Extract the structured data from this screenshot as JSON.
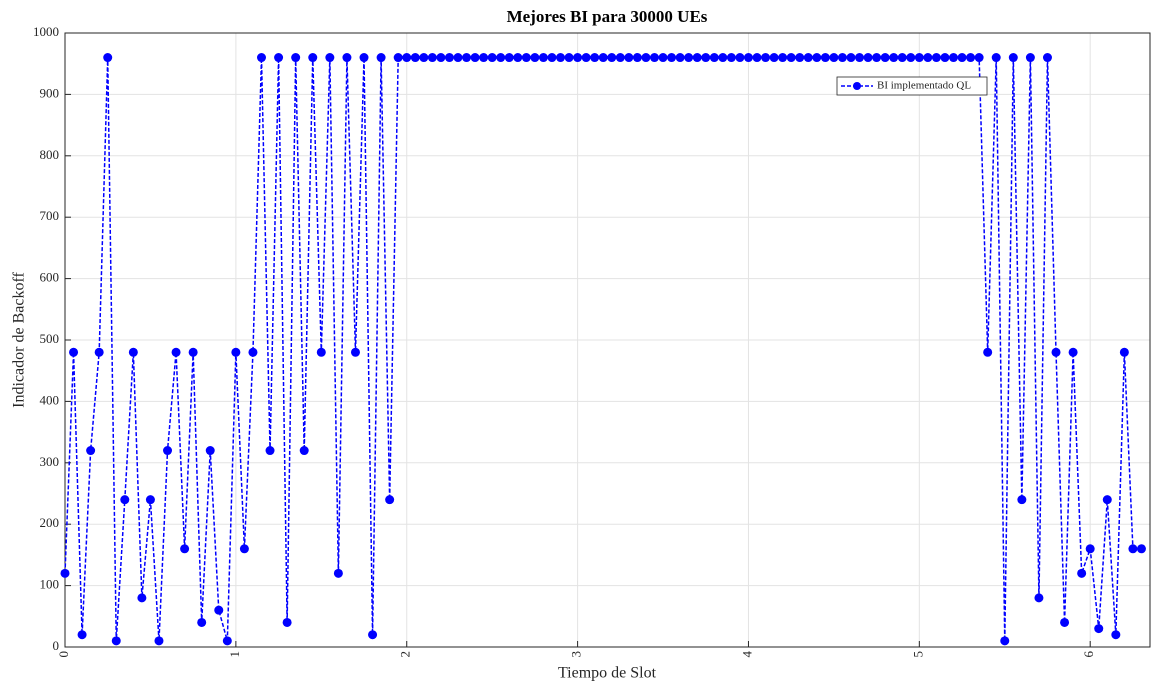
{
  "chart_data": {
    "type": "line",
    "title": "Mejores BI para 30000 UEs",
    "xlabel": "Tiempo de Slot",
    "ylabel": "Indicador de Backoff",
    "x": [
      0,
      0.05,
      0.1,
      0.15,
      0.2,
      0.25,
      0.3,
      0.35,
      0.4,
      0.45,
      0.5,
      0.55,
      0.6,
      0.65,
      0.7,
      0.75,
      0.8,
      0.85,
      0.9,
      0.95,
      1,
      1.05,
      1.1,
      1.15,
      1.2,
      1.25,
      1.3,
      1.35,
      1.4,
      1.45,
      1.5,
      1.55,
      1.6,
      1.65,
      1.7,
      1.75,
      1.8,
      1.85,
      1.9,
      1.95,
      2,
      2.05,
      2.1,
      2.15,
      2.2,
      2.25,
      2.3,
      2.35,
      2.4,
      2.45,
      2.5,
      2.55,
      2.6,
      2.65,
      2.7,
      2.75,
      2.8,
      2.85,
      2.9,
      2.95,
      3,
      3.05,
      3.1,
      3.15,
      3.2,
      3.25,
      3.3,
      3.35,
      3.4,
      3.45,
      3.5,
      3.55,
      3.6,
      3.65,
      3.7,
      3.75,
      3.8,
      3.85,
      3.9,
      3.95,
      4,
      4.05,
      4.1,
      4.15,
      4.2,
      4.25,
      4.3,
      4.35,
      4.4,
      4.45,
      4.5,
      4.55,
      4.6,
      4.65,
      4.7,
      4.75,
      4.8,
      4.85,
      4.9,
      4.95,
      5,
      5.05,
      5.1,
      5.15,
      5.2,
      5.25,
      5.3,
      5.35,
      5.4,
      5.45,
      5.5,
      5.55,
      5.6,
      5.65,
      5.7,
      5.75,
      5.8,
      5.85,
      5.9,
      5.95,
      6,
      6.05,
      6.1,
      6.15,
      6.2,
      6.25,
      6.3
    ],
    "series": [
      {
        "name": "BI implementado QL",
        "color": "#0000ff",
        "values": [
          120,
          480,
          20,
          320,
          480,
          960,
          10,
          240,
          480,
          80,
          240,
          10,
          320,
          480,
          160,
          480,
          40,
          320,
          60,
          10,
          480,
          160,
          480,
          960,
          320,
          960,
          40,
          960,
          320,
          960,
          480,
          960,
          120,
          960,
          480,
          960,
          20,
          960,
          240,
          960,
          960,
          960,
          960,
          960,
          960,
          960,
          960,
          960,
          960,
          960,
          960,
          960,
          960,
          960,
          960,
          960,
          960,
          960,
          960,
          960,
          960,
          960,
          960,
          960,
          960,
          960,
          960,
          960,
          960,
          960,
          960,
          960,
          960,
          960,
          960,
          960,
          960,
          960,
          960,
          960,
          960,
          960,
          960,
          960,
          960,
          960,
          960,
          960,
          960,
          960,
          960,
          960,
          960,
          960,
          960,
          960,
          960,
          960,
          960,
          960,
          960,
          960,
          960,
          960,
          960,
          960,
          960,
          960,
          480,
          960,
          10,
          960,
          240,
          960,
          80,
          960,
          480,
          40,
          480,
          120,
          160,
          30,
          240,
          20,
          480,
          160,
          160
        ]
      }
    ],
    "xlim": [
      0,
      6.35
    ],
    "xticks": [
      0,
      1,
      2,
      3,
      4,
      5,
      6
    ],
    "ylim": [
      0,
      1000
    ],
    "yticks": [
      0,
      100,
      200,
      300,
      400,
      500,
      600,
      700,
      800,
      900,
      1000
    ],
    "grid": true,
    "legend": "upper right"
  }
}
